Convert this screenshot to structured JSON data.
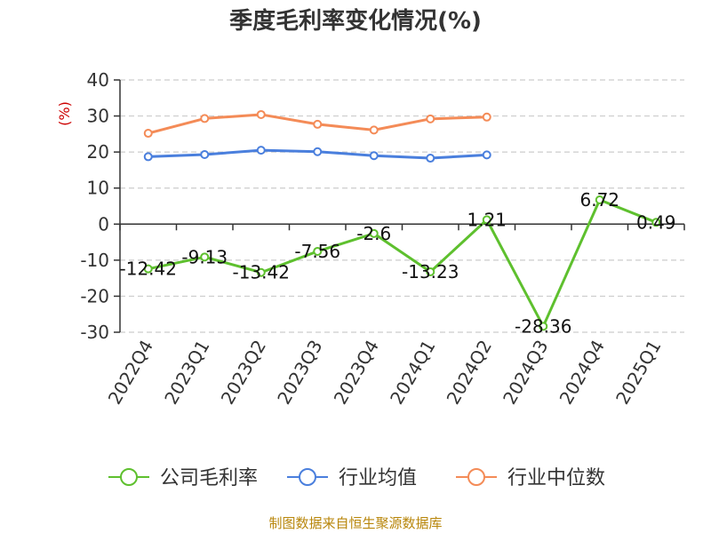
{
  "chart_data": {
    "type": "line",
    "title": "季度毛利率变化情况(%)",
    "ylabel": "(%)",
    "xlabel": "",
    "ylim": [
      -30,
      40
    ],
    "yticks": [
      "40",
      "30",
      "20",
      "10",
      "0",
      "-10",
      "-20",
      "-30"
    ],
    "categories": [
      "2022Q4",
      "2023Q1",
      "2023Q2",
      "2023Q3",
      "2023Q4",
      "2024Q1",
      "2024Q2",
      "2024Q3",
      "2024Q4",
      "2025Q1"
    ],
    "grid": true,
    "legend_position": "bottom",
    "series": [
      {
        "name": "公司毛利率",
        "color": "#5ec02e",
        "values": [
          -12.42,
          -9.13,
          -13.42,
          -7.56,
          -2.6,
          -13.23,
          1.21,
          -28.36,
          6.72,
          0.49
        ],
        "labels": [
          "-12.42",
          "-9.13",
          "-13.42",
          "-7.56",
          "-2.6",
          "-13.23",
          "1.21",
          "-28.36",
          "6.72",
          "0.49"
        ]
      },
      {
        "name": "行业均值",
        "color": "#4a7fdd",
        "values": [
          18.7,
          19.3,
          20.5,
          20.1,
          19.0,
          18.3,
          19.2,
          null,
          null,
          null
        ]
      },
      {
        "name": "行业中位数",
        "color": "#f48b57",
        "values": [
          25.2,
          29.3,
          30.4,
          27.7,
          26.1,
          29.2,
          29.7,
          null,
          null,
          null
        ]
      }
    ]
  },
  "footer": {
    "source": "制图数据来自恒生聚源数据库",
    "source_color": "#b8860b"
  },
  "colors": {
    "axis": "#333333",
    "grid": "#cccccc",
    "ylabel": "#cc0000"
  }
}
